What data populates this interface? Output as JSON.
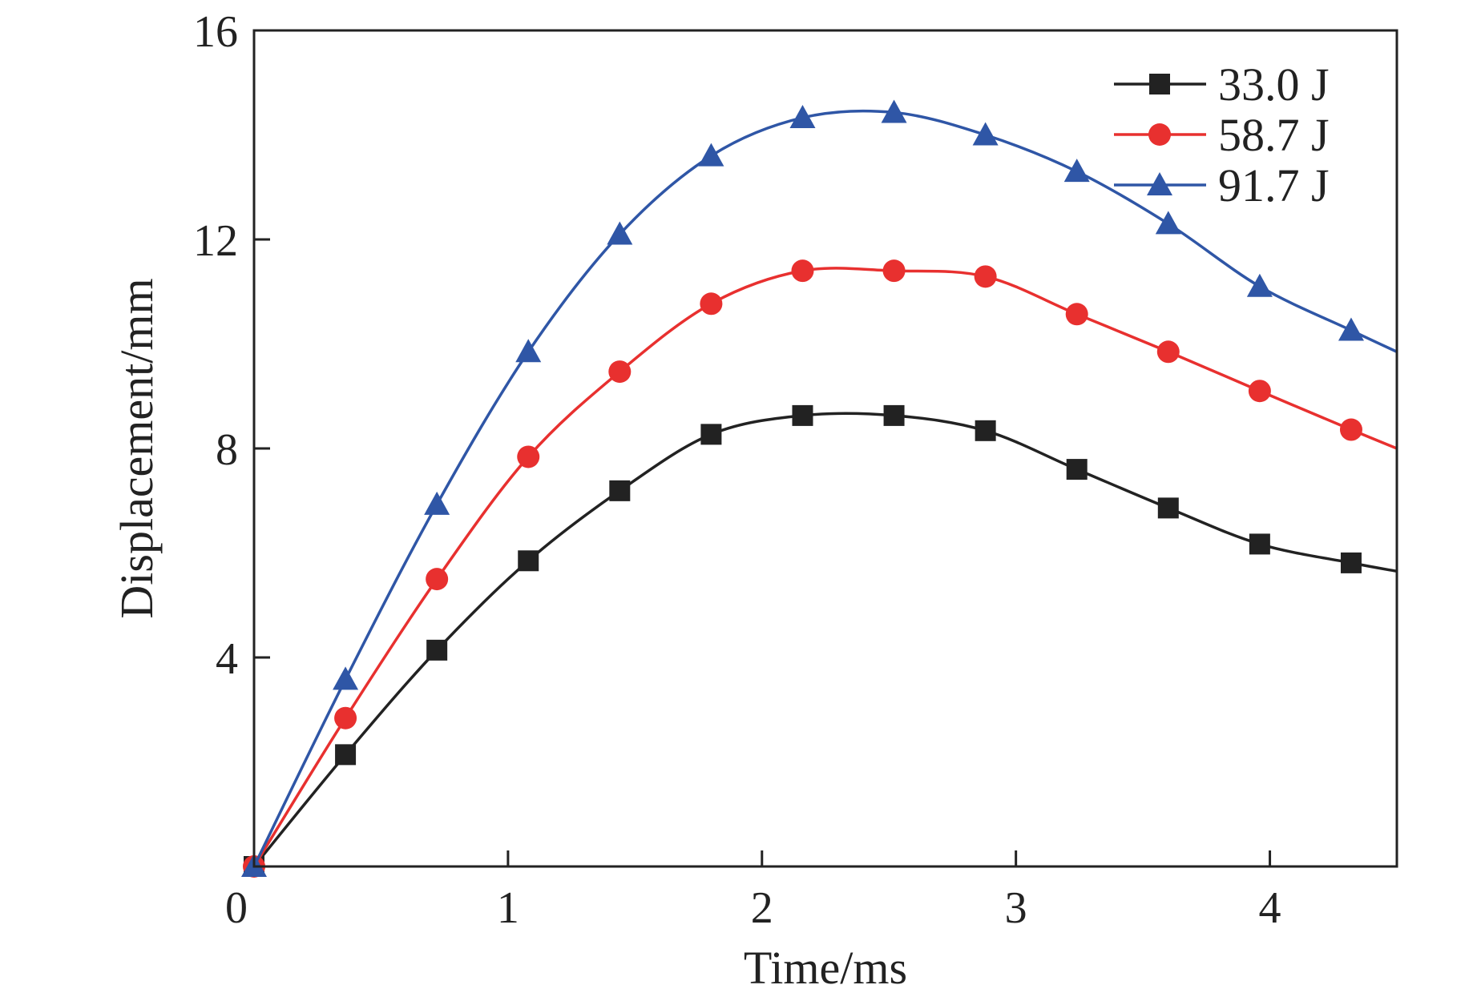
{
  "chart_data": {
    "type": "line",
    "title": "",
    "xlabel": "Time/ms",
    "ylabel": "Displacement/mm",
    "xlim": [
      0,
      4.5
    ],
    "ylim": [
      0,
      16
    ],
    "xticks": [
      "0",
      "1",
      "2",
      "3",
      "4"
    ],
    "yticks": [
      "4",
      "8",
      "12",
      "16"
    ],
    "grid": false,
    "legend_position": "top-right",
    "x": [
      0,
      0.36,
      0.72,
      1.08,
      1.44,
      1.8,
      2.16,
      2.52,
      2.88,
      3.24,
      3.6,
      3.96,
      4.32,
      4.5
    ],
    "series": [
      {
        "name": "33.0 J",
        "color": "#222222",
        "marker": "square",
        "values": [
          0,
          2.14,
          4.14,
          5.85,
          7.19,
          8.27,
          8.63,
          8.63,
          8.34,
          7.6,
          6.86,
          6.17,
          5.81,
          5.65
        ]
      },
      {
        "name": "58.7 J",
        "color": "#e8302f",
        "marker": "circle",
        "values": [
          0,
          2.84,
          5.5,
          7.84,
          9.47,
          10.77,
          11.4,
          11.4,
          11.29,
          10.57,
          9.85,
          9.1,
          8.36,
          8.0
        ]
      },
      {
        "name": "91.7 J",
        "color": "#2f56a6",
        "marker": "triangle",
        "values": [
          0,
          3.58,
          6.93,
          9.85,
          12.1,
          13.6,
          14.33,
          14.43,
          14.0,
          13.3,
          12.3,
          11.1,
          10.26,
          9.85
        ]
      }
    ]
  }
}
